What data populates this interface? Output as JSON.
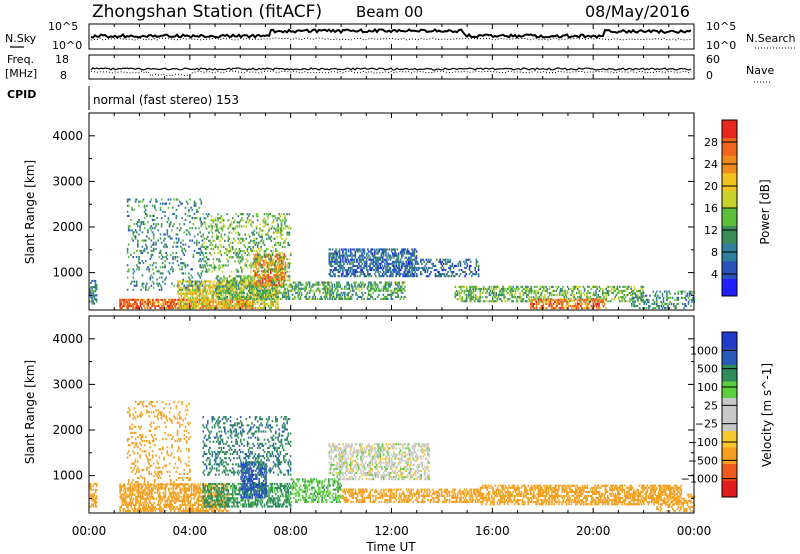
{
  "header": {
    "title": "Zhongshan Station (fitACF)",
    "beam": "Beam 00",
    "date": "08/May/2016"
  },
  "strips": {
    "nsky_label": "N.Sky",
    "nsearch_label": "N.Search",
    "nsky_ticks": [
      "10^5",
      "10^0"
    ],
    "nsearch_ticks": [
      "10^5",
      "10^0"
    ],
    "freq_label": "Freq.",
    "freq_unit": "[MHz]",
    "freq_ticks": [
      "18",
      "8"
    ],
    "nave_label": "Nave",
    "nave_ticks": [
      "60",
      "0"
    ],
    "cpid_label": "CPID",
    "cpid_text": "normal (fast stereo) 153"
  },
  "colors": {
    "power_scale": [
      "#1f1fff",
      "#2a52b8",
      "#2f7fa0",
      "#3c8c5a",
      "#5cbf3c",
      "#c8d22a",
      "#f2c21f",
      "#f08a1c",
      "#f0641e",
      "#e8281e"
    ],
    "velocity_scale": [
      "#e01e1e",
      "#f05a1e",
      "#f5a01e",
      "#f5c832",
      "#c8c8c8",
      "#c8c8c8",
      "#5ccf3c",
      "#2e8c5a",
      "#2a5ab8",
      "#1f3ccc"
    ],
    "ground_scatter": "#b4b4b4"
  },
  "chart_data": [
    {
      "type": "heatmap",
      "panel": "power",
      "ylabel": "Slant Range [km]",
      "yticks": [
        "1000",
        "2000",
        "3000",
        "4000"
      ],
      "ylim": [
        180,
        4500
      ],
      "xlim": [
        0,
        24
      ],
      "xticks": [
        "00:00",
        "04:00",
        "08:00",
        "12:00",
        "16:00",
        "20:00",
        "00:00"
      ],
      "colorbar_label": "Power [dB]",
      "colorbar_ticks": [
        "4",
        "8",
        "12",
        "16",
        "20",
        "24",
        "28"
      ],
      "colorbar_range": [
        0,
        32
      ],
      "regions": [
        {
          "t0": 1.2,
          "t1": 6.5,
          "r0": 200,
          "r1": 420,
          "level": 27,
          "density": 0.65
        },
        {
          "t0": 3.5,
          "t1": 7.5,
          "r0": 200,
          "r1": 800,
          "level": 19,
          "density": 0.55
        },
        {
          "t0": 5.0,
          "t1": 8.0,
          "r0": 400,
          "r1": 900,
          "level": 13,
          "density": 0.5
        },
        {
          "t0": 6.5,
          "t1": 7.8,
          "r0": 700,
          "r1": 1400,
          "level": 25,
          "density": 0.5
        },
        {
          "t0": 4.5,
          "t1": 8.0,
          "r0": 1000,
          "r1": 2300,
          "level": 14,
          "density": 0.25
        },
        {
          "t0": 8.0,
          "t1": 12.5,
          "r0": 400,
          "r1": 800,
          "level": 12,
          "density": 0.45
        },
        {
          "t0": 9.5,
          "t1": 13.0,
          "r0": 900,
          "r1": 1500,
          "level": 7,
          "density": 0.55
        },
        {
          "t0": 1.5,
          "t1": 4.5,
          "r0": 600,
          "r1": 2600,
          "level": 10,
          "density": 0.15
        },
        {
          "t0": 12.5,
          "t1": 15.5,
          "r0": 900,
          "r1": 1300,
          "level": 7,
          "density": 0.3
        },
        {
          "t0": 14.5,
          "t1": 22.0,
          "r0": 350,
          "r1": 700,
          "level": 14,
          "density": 0.45
        },
        {
          "t0": 17.5,
          "t1": 20.5,
          "r0": 200,
          "r1": 400,
          "level": 26,
          "density": 0.5
        },
        {
          "t0": 21.5,
          "t1": 24.0,
          "r0": 200,
          "r1": 600,
          "level": 10,
          "density": 0.3
        },
        {
          "t0": 0.0,
          "t1": 0.3,
          "r0": 300,
          "r1": 800,
          "level": 9,
          "density": 0.5
        }
      ]
    },
    {
      "type": "heatmap",
      "panel": "velocity",
      "ylabel": "Slant Range [km]",
      "xlabel": "Time UT",
      "yticks": [
        "1000",
        "2000",
        "3000",
        "4000"
      ],
      "ylim": [
        180,
        4500
      ],
      "xlim": [
        0,
        24
      ],
      "xticks": [
        "00:00",
        "04:00",
        "08:00",
        "12:00",
        "16:00",
        "20:00",
        "00:00"
      ],
      "colorbar_label": "Velocity [m s^-1]",
      "colorbar_ticks": [
        "1000",
        "500",
        "100",
        "25",
        "-25",
        "-100",
        "-500",
        "-1000"
      ],
      "regions": [
        {
          "t0": 1.2,
          "t1": 5.5,
          "r0": 200,
          "r1": 800,
          "level": -300,
          "density": 0.55
        },
        {
          "t0": 4.5,
          "t1": 8.0,
          "r0": 300,
          "r1": 800,
          "level": 150,
          "density": 0.55
        },
        {
          "t0": 6.0,
          "t1": 7.0,
          "r0": 500,
          "r1": 1300,
          "level": 800,
          "density": 0.6
        },
        {
          "t0": 4.5,
          "t1": 8.0,
          "r0": 1000,
          "r1": 2300,
          "level": 400,
          "density": 0.25
        },
        {
          "t0": 8.0,
          "t1": 10.0,
          "r0": 400,
          "r1": 900,
          "level": 80,
          "density": 0.45
        },
        {
          "t0": 9.5,
          "t1": 13.5,
          "r0": 900,
          "r1": 1700,
          "level": 0,
          "density": 0.45
        },
        {
          "t0": 10.0,
          "t1": 15.5,
          "r0": 400,
          "r1": 700,
          "level": -300,
          "density": 0.5
        },
        {
          "t0": 15.5,
          "t1": 23.5,
          "r0": 350,
          "r1": 800,
          "level": -250,
          "density": 0.55
        },
        {
          "t0": 1.5,
          "t1": 4.0,
          "r0": 700,
          "r1": 2600,
          "level": -200,
          "density": 0.15
        },
        {
          "t0": 0.0,
          "t1": 0.3,
          "r0": 300,
          "r1": 800,
          "level": -300,
          "density": 0.5
        },
        {
          "t0": 22.5,
          "t1": 24.0,
          "r0": 200,
          "r1": 600,
          "level": -200,
          "density": 0.3
        }
      ]
    }
  ]
}
